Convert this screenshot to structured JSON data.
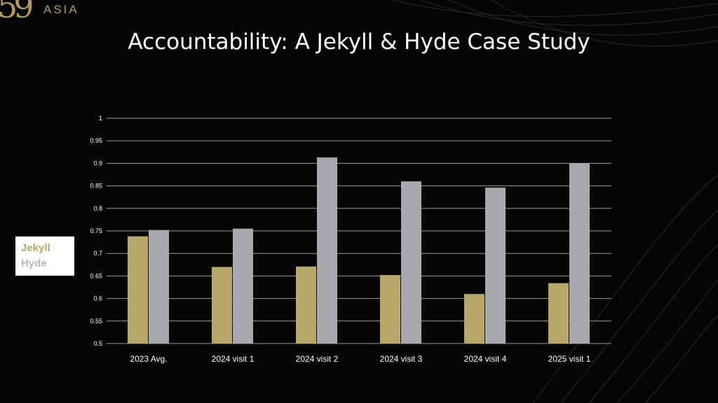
{
  "logo": {
    "mark": "59",
    "text": "ASIA"
  },
  "title": "Accountability: A Jekyll & Hyde Case Study",
  "colors": {
    "jekyll": "#b9a66a",
    "hyde": "#a7a9ac",
    "gridline": "#9a9a9a",
    "text": "#ffffff"
  },
  "legend": {
    "jekyll": "Jekyll",
    "hyde": "Hyde"
  },
  "chart_data": {
    "type": "bar",
    "categories": [
      "2023 Avg.",
      "2024 visit 1",
      "2024 visit 2",
      "2024 visit 3",
      "2024 visit 4",
      "2025 visit 1"
    ],
    "series": [
      {
        "name": "Jekyll",
        "values": [
          0.738,
          0.67,
          0.671,
          0.652,
          0.61,
          0.634
        ]
      },
      {
        "name": "Hyde",
        "values": [
          0.752,
          0.755,
          0.913,
          0.86,
          0.846,
          0.9
        ]
      }
    ],
    "ylim": [
      0.5,
      1
    ],
    "yticks": [
      "1",
      "0.95",
      "0.9",
      "0.85",
      "0.8",
      "0.75",
      "0.7",
      "0.65",
      "0.6",
      "0.55",
      "0.5"
    ],
    "grid": true,
    "legend_position": "left"
  }
}
